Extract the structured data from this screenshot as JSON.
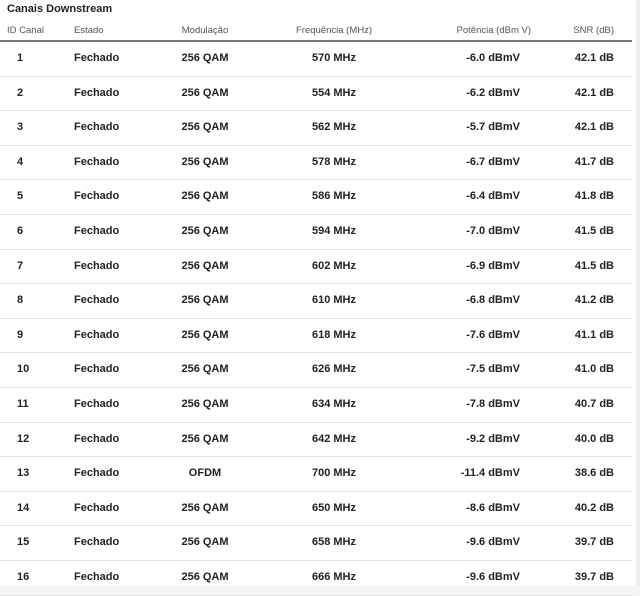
{
  "section_title": "Canais Downstream",
  "columns": {
    "id": "ID Canal",
    "estado": "Estado",
    "modulacao": "Modulação",
    "frequencia": "Frequência (MHz)",
    "potencia": "Potência (dBm V)",
    "snr": "SNR (dB)"
  },
  "rows": [
    {
      "id": "1",
      "estado": "Fechado",
      "modulacao": "256 QAM",
      "frequencia": "570 MHz",
      "potencia": "-6.0 dBmV",
      "snr": "42.1 dB"
    },
    {
      "id": "2",
      "estado": "Fechado",
      "modulacao": "256 QAM",
      "frequencia": "554 MHz",
      "potencia": "-6.2 dBmV",
      "snr": "42.1 dB"
    },
    {
      "id": "3",
      "estado": "Fechado",
      "modulacao": "256 QAM",
      "frequencia": "562 MHz",
      "potencia": "-5.7 dBmV",
      "snr": "42.1 dB"
    },
    {
      "id": "4",
      "estado": "Fechado",
      "modulacao": "256 QAM",
      "frequencia": "578 MHz",
      "potencia": "-6.7 dBmV",
      "snr": "41.7 dB"
    },
    {
      "id": "5",
      "estado": "Fechado",
      "modulacao": "256 QAM",
      "frequencia": "586 MHz",
      "potencia": "-6.4 dBmV",
      "snr": "41.8 dB"
    },
    {
      "id": "6",
      "estado": "Fechado",
      "modulacao": "256 QAM",
      "frequencia": "594 MHz",
      "potencia": "-7.0 dBmV",
      "snr": "41.5 dB"
    },
    {
      "id": "7",
      "estado": "Fechado",
      "modulacao": "256 QAM",
      "frequencia": "602 MHz",
      "potencia": "-6.9 dBmV",
      "snr": "41.5 dB"
    },
    {
      "id": "8",
      "estado": "Fechado",
      "modulacao": "256 QAM",
      "frequencia": "610 MHz",
      "potencia": "-6.8 dBmV",
      "snr": "41.2 dB"
    },
    {
      "id": "9",
      "estado": "Fechado",
      "modulacao": "256 QAM",
      "frequencia": "618 MHz",
      "potencia": "-7.6 dBmV",
      "snr": "41.1 dB"
    },
    {
      "id": "10",
      "estado": "Fechado",
      "modulacao": "256 QAM",
      "frequencia": "626 MHz",
      "potencia": "-7.5 dBmV",
      "snr": "41.0 dB"
    },
    {
      "id": "11",
      "estado": "Fechado",
      "modulacao": "256 QAM",
      "frequencia": "634 MHz",
      "potencia": "-7.8 dBmV",
      "snr": "40.7 dB"
    },
    {
      "id": "12",
      "estado": "Fechado",
      "modulacao": "256 QAM",
      "frequencia": "642 MHz",
      "potencia": "-9.2 dBmV",
      "snr": "40.0 dB"
    },
    {
      "id": "13",
      "estado": "Fechado",
      "modulacao": "OFDM",
      "frequencia": "700 MHz",
      "potencia": "-11.4 dBmV",
      "snr": "38.6 dB"
    },
    {
      "id": "14",
      "estado": "Fechado",
      "modulacao": "256 QAM",
      "frequencia": "650 MHz",
      "potencia": "-8.6 dBmV",
      "snr": "40.2 dB"
    },
    {
      "id": "15",
      "estado": "Fechado",
      "modulacao": "256 QAM",
      "frequencia": "658 MHz",
      "potencia": "-9.6 dBmV",
      "snr": "39.7 dB"
    },
    {
      "id": "16",
      "estado": "Fechado",
      "modulacao": "256 QAM",
      "frequencia": "666 MHz",
      "potencia": "-9.6 dBmV",
      "snr": "39.7 dB"
    }
  ]
}
